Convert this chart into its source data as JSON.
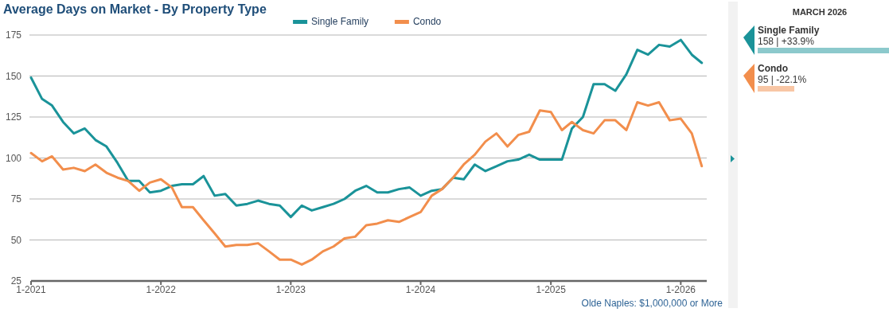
{
  "chart_data": [
    {
      "type": "line",
      "title": "Average Days on Market - By Property Type",
      "x": [
        "2021-01",
        "2021-02",
        "2021-03",
        "2021-04",
        "2021-05",
        "2021-06",
        "2021-07",
        "2021-08",
        "2021-09",
        "2021-10",
        "2021-11",
        "2021-12",
        "2022-01",
        "2022-02",
        "2022-03",
        "2022-04",
        "2022-05",
        "2022-06",
        "2022-07",
        "2022-08",
        "2022-09",
        "2022-10",
        "2022-11",
        "2022-12",
        "2023-01",
        "2023-02",
        "2023-03",
        "2023-04",
        "2023-05",
        "2023-06",
        "2023-07",
        "2023-08",
        "2023-09",
        "2023-10",
        "2023-11",
        "2023-12",
        "2024-01",
        "2024-02",
        "2024-03",
        "2024-04",
        "2024-05",
        "2024-06",
        "2024-07",
        "2024-08",
        "2024-09",
        "2024-10",
        "2024-11",
        "2024-12",
        "2025-01",
        "2025-02",
        "2025-03",
        "2025-04",
        "2025-05",
        "2025-06",
        "2025-07",
        "2025-08",
        "2025-09",
        "2025-10",
        "2025-11",
        "2025-12",
        "2026-01",
        "2026-02",
        "2026-03"
      ],
      "series": [
        {
          "name": "Single Family",
          "color": "#1a9399",
          "values": [
            149,
            136,
            132,
            122,
            115,
            118,
            111,
            107,
            97,
            86,
            86,
            79,
            80,
            83,
            84,
            84,
            89,
            77,
            78,
            71,
            72,
            74,
            72,
            71,
            64,
            71,
            68,
            70,
            72,
            75,
            80,
            83,
            79,
            79,
            81,
            82,
            77,
            80,
            81,
            88,
            87,
            96,
            92,
            95,
            98,
            99,
            102,
            99,
            99,
            99,
            118,
            125,
            145,
            145,
            141,
            151,
            166,
            163,
            169,
            168,
            172,
            163,
            158
          ]
        },
        {
          "name": "Condo",
          "color": "#f28e4c",
          "values": [
            103,
            98,
            101,
            93,
            94,
            92,
            96,
            91,
            88,
            86,
            80,
            85,
            87,
            82,
            70,
            70,
            62,
            54,
            46,
            47,
            47,
            48,
            43,
            38,
            38,
            35,
            38,
            43,
            46,
            51,
            52,
            59,
            60,
            62,
            61,
            64,
            67,
            77,
            81,
            88,
            96,
            102,
            110,
            115,
            107,
            114,
            116,
            129,
            128,
            117,
            122,
            117,
            115,
            123,
            123,
            117,
            134,
            132,
            134,
            123,
            124,
            115,
            95
          ]
        }
      ],
      "xlim": [
        "2021-01",
        "2026-03-15"
      ],
      "xticks": [
        {
          "value": "2021-01",
          "label": "1-2021"
        },
        {
          "value": "2022-01",
          "label": "1-2022"
        },
        {
          "value": "2023-01",
          "label": "1-2023"
        },
        {
          "value": "2024-01",
          "label": "1-2024"
        },
        {
          "value": "2025-01",
          "label": "1-2025"
        },
        {
          "value": "2026-01",
          "label": "1-2026"
        }
      ],
      "ylim": [
        25,
        175
      ],
      "yticks": [
        25,
        50,
        75,
        100,
        125,
        150,
        175
      ],
      "grid": "y",
      "legend": "top",
      "marker": "none",
      "line_style": "solid",
      "annotations": [
        "Olde Naples: $1,000,000 or More"
      ]
    },
    {
      "type": "other",
      "title": "MARCH 2026",
      "categories": [
        "Single Family",
        "Condo"
      ],
      "colors": [
        "#1a9399",
        "#f28e4c"
      ],
      "annotations": [
        "158 | +33.9%",
        "95 | -22.1%"
      ]
    }
  ]
}
